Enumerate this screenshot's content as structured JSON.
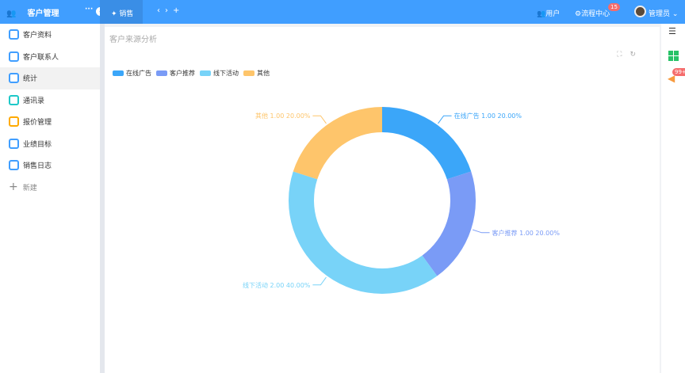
{
  "header": {
    "app_title": "客户管理",
    "tab": "销售",
    "users": "用户",
    "workflow": "流程中心",
    "workflow_badge": "15",
    "admin": "管理员"
  },
  "sidebar": {
    "items": [
      {
        "label": "客户资料",
        "color": "#409eff"
      },
      {
        "label": "客户联系人",
        "color": "#409eff"
      },
      {
        "label": "统计",
        "color": "#409eff"
      },
      {
        "label": "通讯录",
        "color": "#1ec8c8"
      },
      {
        "label": "报价管理",
        "color": "#ffaa00"
      },
      {
        "label": "业绩目标",
        "color": "#409eff"
      },
      {
        "label": "销售日志",
        "color": "#409eff"
      }
    ],
    "new_label": "新建"
  },
  "rightbar": {
    "badge": "99+"
  },
  "chart_data": {
    "type": "pie",
    "title": "客户来源分析",
    "legend": "top-left",
    "donut": true,
    "slices": [
      {
        "name": "在线广告",
        "value": 1.0,
        "percent": 20.0,
        "color": "#3ba6f9",
        "label": "在线广告 1.00 20.00%"
      },
      {
        "name": "客户推荐",
        "value": 1.0,
        "percent": 20.0,
        "color": "#7a9bf6",
        "label": "客户推荐 1.00 20.00%"
      },
      {
        "name": "线下活动",
        "value": 2.0,
        "percent": 40.0,
        "color": "#78d3f8",
        "label": "线下活动 2.00 40.00%"
      },
      {
        "name": "其他",
        "value": 1.0,
        "percent": 20.0,
        "color": "#fec56b",
        "label": "其他 1.00 20.00%"
      }
    ]
  }
}
